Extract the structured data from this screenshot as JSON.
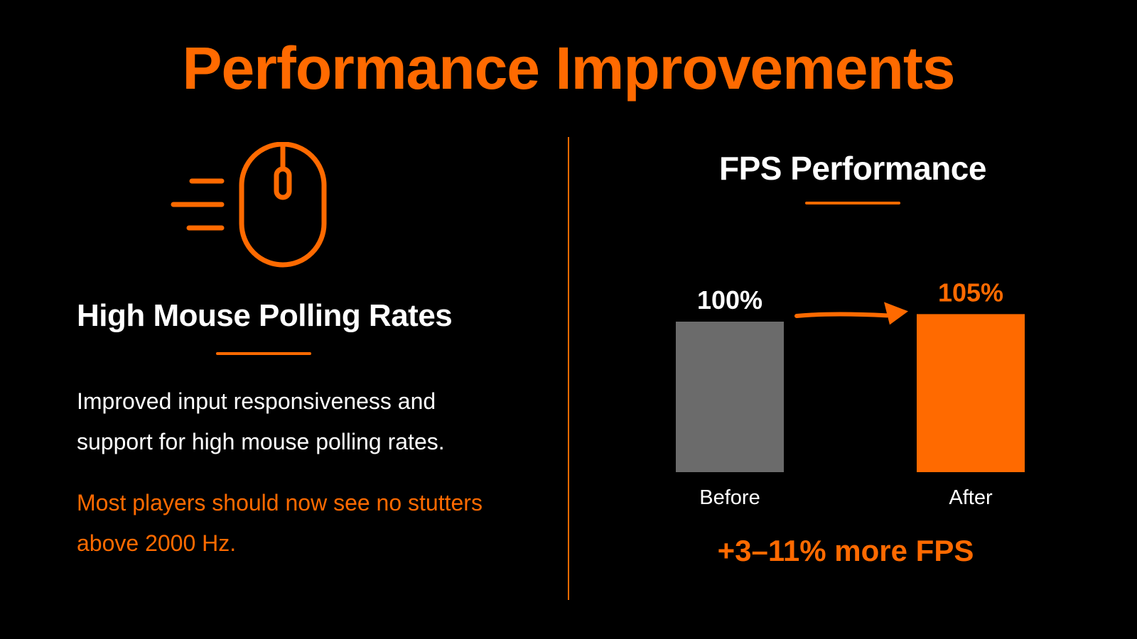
{
  "title": "Performance Improvements",
  "colors": {
    "accent": "#ff6a00",
    "before_bar": "#6b6b6b",
    "text": "#ffffff",
    "background": "#000000"
  },
  "left_panel": {
    "icon": "mouse-icon",
    "heading": "High Mouse Polling Rates",
    "description": "Improved input responsiveness and support for high mouse polling rates.",
    "note": "Most players should now see no stutters above 2000 Hz."
  },
  "chart_data": {
    "type": "bar",
    "title": "FPS Performance",
    "categories": [
      "Before",
      "After"
    ],
    "values": [
      100,
      105
    ],
    "data_labels": [
      "100%",
      "105%"
    ],
    "xlabel": "",
    "ylabel": "",
    "grid": false,
    "annotation": "+3–11% more FPS"
  }
}
